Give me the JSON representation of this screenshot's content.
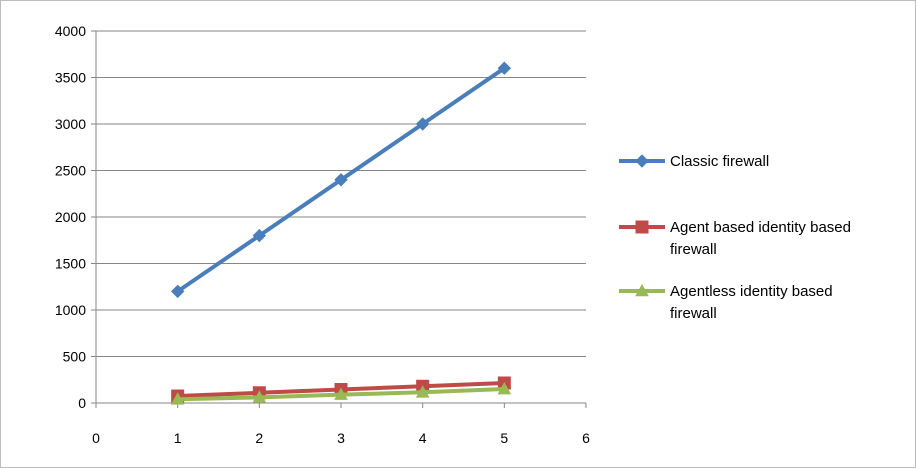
{
  "chart_data": {
    "type": "line",
    "title": "",
    "xlabel": "",
    "ylabel": "",
    "xlim": [
      0,
      6
    ],
    "ylim": [
      0,
      4000
    ],
    "x_ticks": [
      "0",
      "1",
      "2",
      "3",
      "4",
      "5",
      "6"
    ],
    "y_ticks": [
      "0",
      "500",
      "1000",
      "1500",
      "2000",
      "2500",
      "3000",
      "3500",
      "4000"
    ],
    "grid": "horizontal",
    "legend_position": "right",
    "x": [
      1,
      2,
      3,
      4,
      5
    ],
    "series": [
      {
        "name": "Classic firewall",
        "name_lines": [
          "Classic firewall"
        ],
        "values": [
          1200,
          1800,
          2400,
          3000,
          3600
        ],
        "color": "#4a7ebb",
        "marker": "diamond"
      },
      {
        "name": "Agent based identity based firewall",
        "name_lines": [
          "Agent based identity based",
          "firewall"
        ],
        "values": [
          75,
          110,
          145,
          180,
          215
        ],
        "color": "#be4b48",
        "marker": "square"
      },
      {
        "name": "Agentless identity based firewall",
        "name_lines": [
          "Agentless identity based",
          "firewall"
        ],
        "values": [
          40,
          60,
          90,
          115,
          150
        ],
        "color": "#98b954",
        "marker": "triangle"
      }
    ]
  }
}
